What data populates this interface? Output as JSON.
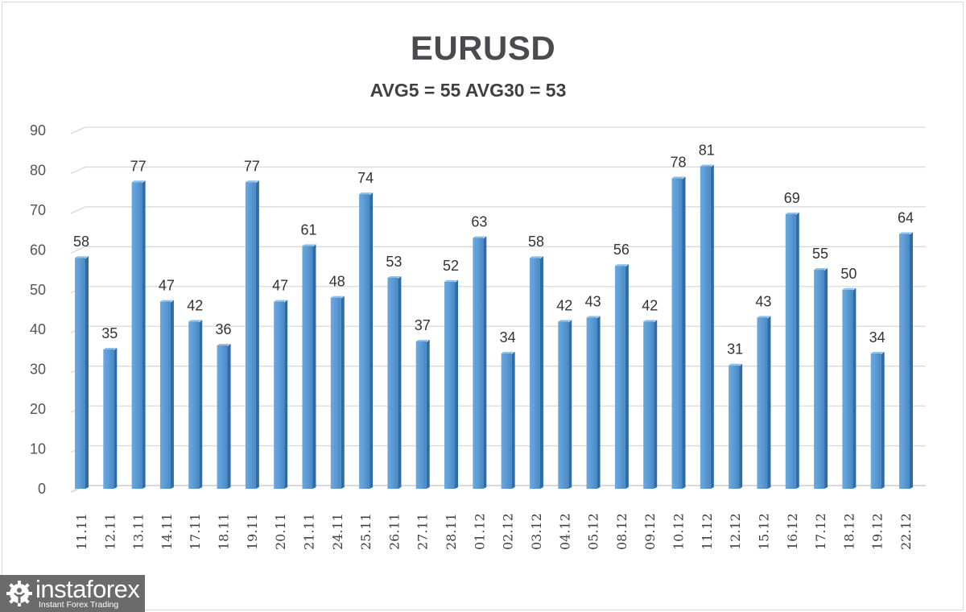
{
  "chart_data": {
    "type": "bar",
    "title": "EURUSD",
    "subtitle": "AVG5 = 55 AVG30 = 53",
    "xlabel": "",
    "ylabel": "",
    "ylim": [
      0,
      90
    ],
    "yticks": [
      0,
      10,
      20,
      30,
      40,
      50,
      60,
      70,
      80,
      90
    ],
    "grid": true,
    "legend": null,
    "categories": [
      "11.11",
      "12.11",
      "13.11",
      "14.11",
      "17.11",
      "18.11",
      "19.11",
      "20.11",
      "21.11",
      "24.11",
      "25.11",
      "26.11",
      "27.11",
      "28.11",
      "01.12",
      "02.12",
      "03.12",
      "04.12",
      "05.12",
      "08.12",
      "09.12",
      "10.12",
      "11.12",
      "12.12",
      "15.12",
      "16.12",
      "17.12",
      "18.12",
      "19.12",
      "22.12"
    ],
    "values": [
      58,
      35,
      77,
      47,
      42,
      36,
      77,
      47,
      61,
      48,
      74,
      53,
      37,
      52,
      63,
      34,
      58,
      42,
      43,
      56,
      42,
      78,
      81,
      31,
      43,
      69,
      55,
      50,
      34,
      64
    ],
    "bar_color": "#5b9bd5",
    "bar_edge_color": "#2e6ca8"
  },
  "watermark": {
    "brand": "instaforex",
    "tagline": "Instant Forex Trading",
    "icon": "gear-person-icon"
  }
}
